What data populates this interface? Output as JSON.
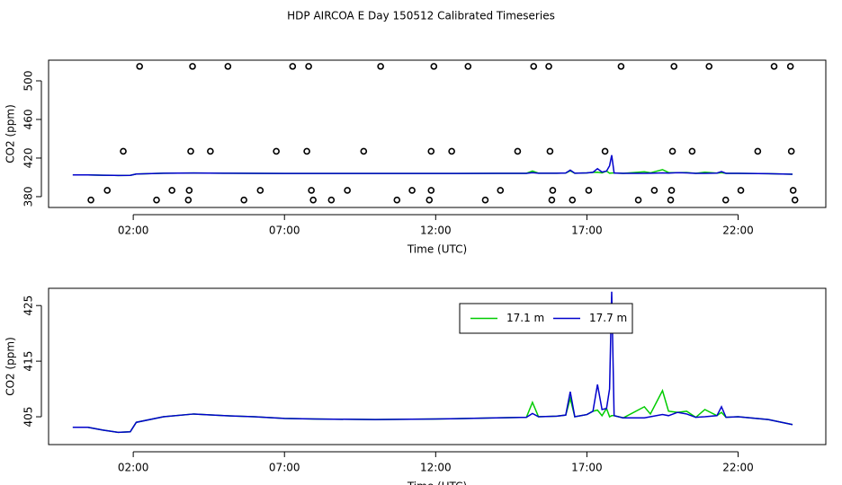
{
  "title": "HDP AIRCOA E  Day 150512  Calibrated Timeseries",
  "chart_data": [
    {
      "type": "line",
      "xlabel": "Time (UTC)",
      "ylabel": "CO2 (ppm)",
      "xlim": [
        -0.8,
        24.9
      ],
      "ylim": [
        368.8,
        521.4
      ],
      "xticks": [
        {
          "value": 2,
          "label": "02:00"
        },
        {
          "value": 7,
          "label": "07:00"
        },
        {
          "value": 12,
          "label": "12:00"
        },
        {
          "value": 17,
          "label": "17:00"
        },
        {
          "value": 22,
          "label": "22:00"
        }
      ],
      "yticks": [
        380,
        420,
        460,
        500
      ],
      "x": [
        0,
        0.5,
        1,
        1.5,
        1.9,
        2.1,
        3,
        4,
        5,
        6,
        7,
        8,
        10,
        12,
        14,
        15,
        15.2,
        15.4,
        16,
        16.3,
        16.45,
        16.6,
        17,
        17.2,
        17.35,
        17.5,
        17.65,
        17.75,
        17.82,
        17.9,
        18.2,
        18.9,
        19.1,
        19.5,
        19.7,
        20,
        20.3,
        20.6,
        20.9,
        21.3,
        21.45,
        21.6,
        22,
        23,
        23.8
      ],
      "series": [
        {
          "color": "#00cc00",
          "values": [
            402.5,
            402.5,
            402.2,
            402,
            402.1,
            403.5,
            404.3,
            404.5,
            404.3,
            404.2,
            404,
            404,
            404,
            404,
            404.1,
            404.2,
            406.5,
            404.3,
            404.3,
            404.5,
            406.8,
            404.3,
            404.6,
            405.2,
            405.3,
            404.6,
            406.5,
            404.3,
            404.5,
            404.5,
            404.1,
            405.8,
            404.7,
            408,
            405,
            404.9,
            405,
            404.2,
            405.3,
            404.4,
            404.8,
            404.2,
            404.2,
            403.8,
            403.2
          ]
        },
        {
          "color": "#0000cc",
          "values": [
            402.5,
            402.5,
            402.2,
            402,
            402.1,
            403.5,
            404.3,
            404.5,
            404.3,
            404.2,
            404,
            404,
            404,
            404,
            404.1,
            404.2,
            404.8,
            404.3,
            404.3,
            404.5,
            407.5,
            404.3,
            404.6,
            405.2,
            409,
            405.5,
            406.5,
            412,
            423,
            404.5,
            404.1,
            404.1,
            404.3,
            404.6,
            404.4,
            404.9,
            404.6,
            404.2,
            404.2,
            404.4,
            406,
            404.2,
            404.2,
            403.8,
            403.2
          ]
        },
        {
          "type": "points",
          "color": "#000000",
          "x": [
            2.21,
            3.96,
            5.13,
            7.27,
            7.8,
            10.18,
            11.94,
            13.07,
            15.24,
            15.74,
            18.13,
            19.88,
            21.04,
            23.19,
            23.73,
            1.67,
            3.9,
            4.55,
            6.73,
            7.74,
            9.62,
            11.85,
            12.53,
            14.71,
            15.78,
            17.6,
            19.83,
            20.48,
            22.65,
            23.76,
            1.14,
            3.28,
            3.85,
            6.2,
            7.89,
            9.08,
            11.22,
            11.85,
            14.14,
            15.87,
            17.06,
            19.23,
            19.8,
            22.09,
            23.82,
            0.6,
            2.77,
            3.82,
            5.66,
            7.95,
            8.55,
            10.72,
            11.79,
            13.64,
            15.84,
            16.52,
            18.7,
            19.77,
            21.59,
            23.88
          ],
          "values": [
            515,
            515,
            515,
            515,
            515,
            515,
            515,
            515,
            515,
            515,
            515,
            515,
            515,
            515,
            515,
            427,
            427,
            427,
            427,
            427,
            427,
            427,
            427,
            427,
            427,
            427,
            427,
            427,
            427,
            427,
            386.5,
            386.5,
            386.5,
            386.5,
            386.5,
            386.5,
            386.5,
            386.5,
            386.5,
            386.5,
            386.5,
            386.5,
            386.5,
            386.5,
            386.5,
            376.5,
            376.5,
            376.5,
            376.5,
            376.5,
            376.5,
            376.5,
            376.5,
            376.5,
            376.5,
            376.5,
            376.5,
            376.5,
            376.5,
            376.5
          ]
        }
      ]
    },
    {
      "type": "line",
      "xlabel": "Time (UTC)",
      "ylabel": "CO2 (ppm)",
      "legend": "top",
      "xlim": [
        -0.8,
        24.9
      ],
      "ylim": [
        400,
        428.1
      ],
      "xticks": [
        {
          "value": 2,
          "label": "02:00"
        },
        {
          "value": 7,
          "label": "07:00"
        },
        {
          "value": 12,
          "label": "12:00"
        },
        {
          "value": 17,
          "label": "17:00"
        },
        {
          "value": 22,
          "label": "22:00"
        }
      ],
      "yticks": [
        405,
        415,
        425
      ],
      "x": [
        0,
        0.5,
        1,
        1.5,
        1.9,
        2.1,
        3,
        4,
        5,
        6,
        7,
        8,
        10,
        12,
        14,
        15,
        15.2,
        15.4,
        16,
        16.3,
        16.45,
        16.6,
        17,
        17.2,
        17.35,
        17.5,
        17.65,
        17.75,
        17.82,
        17.9,
        18.2,
        18.9,
        19.1,
        19.5,
        19.7,
        20,
        20.3,
        20.6,
        20.9,
        21.3,
        21.45,
        21.6,
        22,
        23,
        23.8
      ],
      "series": [
        {
          "name": "17.1 m",
          "color": "#00cc00",
          "values": [
            403.1,
            403.1,
            402.6,
            402.2,
            402.3,
            404,
            405,
            405.5,
            405.2,
            405,
            404.7,
            404.6,
            404.5,
            404.6,
            404.8,
            404.9,
            407.6,
            405,
            405.1,
            405.3,
            408.3,
            405,
            405.4,
            406,
            406.2,
            405.2,
            406.5,
            405,
            405.2,
            405.2,
            404.8,
            406.8,
            405.5,
            409.7,
            406,
            405.8,
            406,
            404.9,
            406.3,
            405.2,
            405.8,
            404.9,
            405,
            404.5,
            403.6
          ]
        },
        {
          "name": "17.7 m",
          "color": "#0000cc",
          "values": [
            403.1,
            403.1,
            402.6,
            402.2,
            402.3,
            404,
            405,
            405.5,
            405.2,
            405,
            404.7,
            404.6,
            404.5,
            404.6,
            404.8,
            404.9,
            405.6,
            405,
            405.1,
            405.3,
            409.5,
            405,
            405.4,
            406,
            410.8,
            406.3,
            406.5,
            410,
            427.5,
            405.2,
            404.8,
            404.8,
            405,
            405.4,
            405.2,
            405.8,
            405.5,
            404.9,
            405,
            405.2,
            406.8,
            404.9,
            405,
            404.5,
            403.6
          ]
        }
      ]
    }
  ]
}
